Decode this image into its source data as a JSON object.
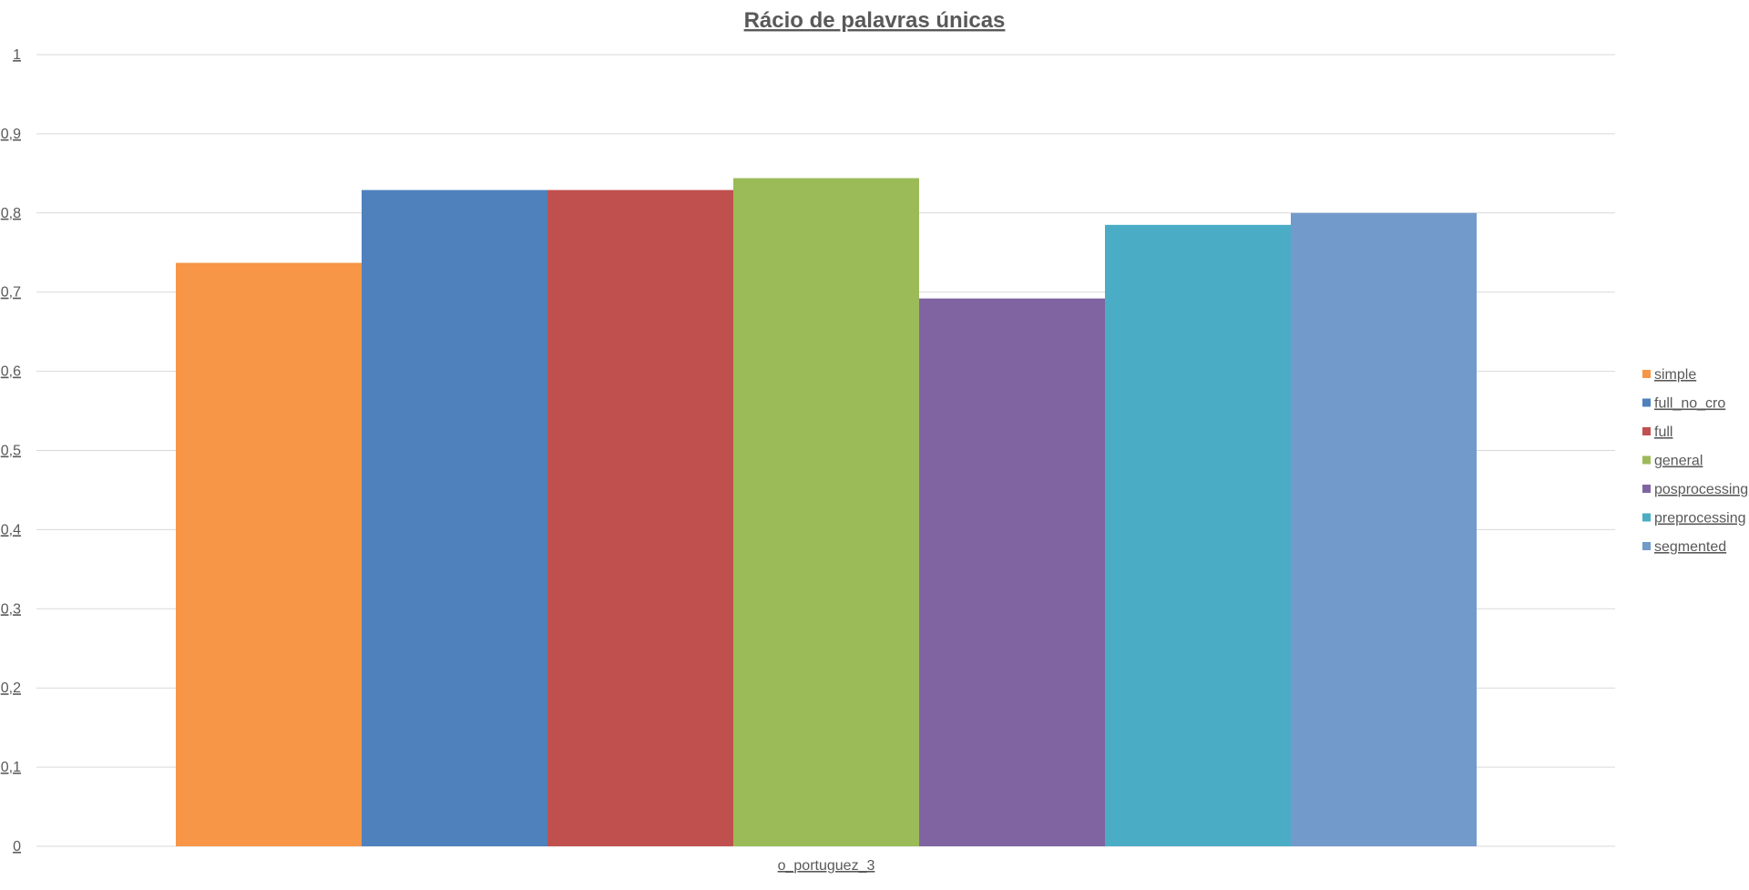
{
  "chart_data": {
    "type": "bar",
    "title": "Rácio de palavras únicas",
    "xlabel": "",
    "ylabel": "",
    "categories": [
      "o_portuguez_3"
    ],
    "ylim": [
      0,
      1
    ],
    "yticks": [
      0,
      0.1,
      0.2,
      0.3,
      0.4,
      0.5,
      0.6,
      0.7,
      0.8,
      0.9,
      1
    ],
    "ytick_labels": [
      "0",
      "0,1",
      "0,2",
      "0,3",
      "0,4",
      "0,5",
      "0,6",
      "0,7",
      "0,8",
      "0,9",
      "1"
    ],
    "grid": true,
    "legend_position": "right",
    "series": [
      {
        "name": "simple",
        "values": [
          0.737
        ],
        "color": "#F79646"
      },
      {
        "name": "full_no_cro",
        "values": [
          0.829
        ],
        "color": "#4F81BD"
      },
      {
        "name": "full",
        "values": [
          0.829
        ],
        "color": "#C0504D"
      },
      {
        "name": "general",
        "values": [
          0.844
        ],
        "color": "#9BBB59"
      },
      {
        "name": "posprocessing",
        "values": [
          0.692
        ],
        "color": "#8064A2"
      },
      {
        "name": "preprocessing",
        "values": [
          0.785
        ],
        "color": "#4BACC6"
      },
      {
        "name": "segmented",
        "values": [
          0.8
        ],
        "color": "#729ACA"
      }
    ]
  }
}
